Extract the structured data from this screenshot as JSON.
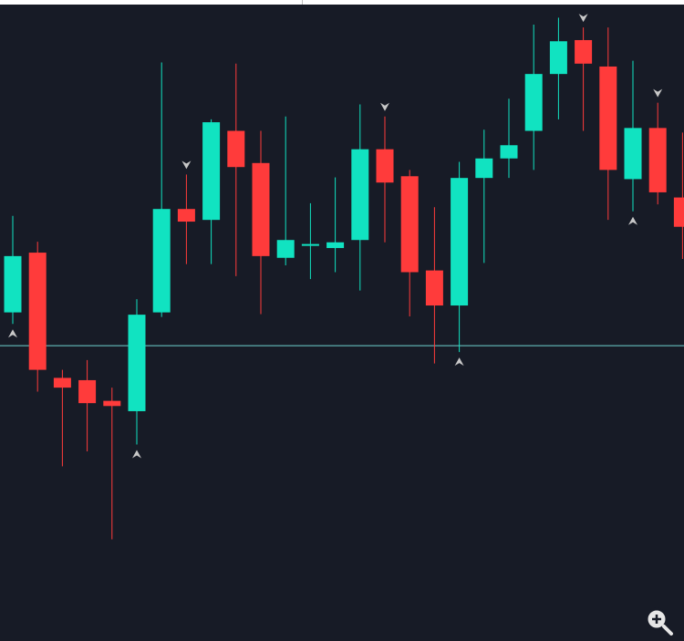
{
  "colors": {
    "background": "#171b26",
    "bullish": "#11e3c1",
    "bearish": "#ff3b3b",
    "level_line": "#6fd3cf",
    "fractal_marker": "#c8c8c8",
    "zoom_icon_bg": "#e6e6e6",
    "zoom_icon_fg": "#171b26"
  },
  "chart_data": {
    "type": "candlestick",
    "title": "",
    "xlabel": "",
    "ylabel": "",
    "grid": false,
    "ylim": [
      0,
      100
    ],
    "candles": [
      {
        "o": 48.0,
        "h": 64.8,
        "l": 46.0,
        "c": 57.8
      },
      {
        "o": 58.4,
        "h": 60.3,
        "l": 34.2,
        "c": 38.0
      },
      {
        "o": 36.6,
        "h": 38.0,
        "l": 21.2,
        "c": 34.9
      },
      {
        "o": 36.2,
        "h": 39.7,
        "l": 23.8,
        "c": 32.2
      },
      {
        "o": 32.6,
        "h": 34.9,
        "l": 8.5,
        "c": 31.7
      },
      {
        "o": 30.8,
        "h": 50.3,
        "l": 25.0,
        "c": 47.6
      },
      {
        "o": 48.0,
        "h": 91.5,
        "l": 47.2,
        "c": 66.0
      },
      {
        "o": 66.0,
        "h": 72.0,
        "l": 56.4,
        "c": 63.8
      },
      {
        "o": 64.1,
        "h": 81.6,
        "l": 56.4,
        "c": 81.1
      },
      {
        "o": 79.6,
        "h": 91.3,
        "l": 54.3,
        "c": 73.3
      },
      {
        "o": 74.0,
        "h": 79.6,
        "l": 47.7,
        "c": 57.8
      },
      {
        "o": 57.5,
        "h": 82.1,
        "l": 56.2,
        "c": 60.6
      },
      {
        "o": 59.6,
        "h": 67.0,
        "l": 53.8,
        "c": 59.9
      },
      {
        "o": 59.2,
        "h": 71.5,
        "l": 55.0,
        "c": 60.2
      },
      {
        "o": 60.6,
        "h": 84.2,
        "l": 51.8,
        "c": 76.4
      },
      {
        "o": 76.4,
        "h": 82.1,
        "l": 60.2,
        "c": 70.6
      },
      {
        "o": 71.7,
        "h": 72.8,
        "l": 47.3,
        "c": 55.0
      },
      {
        "o": 55.3,
        "h": 66.3,
        "l": 39.1,
        "c": 49.2
      },
      {
        "o": 49.2,
        "h": 74.2,
        "l": 41.1,
        "c": 71.4
      },
      {
        "o": 71.4,
        "h": 79.8,
        "l": 56.6,
        "c": 74.8
      },
      {
        "o": 74.8,
        "h": 85.2,
        "l": 71.4,
        "c": 77.1
      },
      {
        "o": 79.6,
        "h": 98.1,
        "l": 72.8,
        "c": 89.5
      },
      {
        "o": 89.5,
        "h": 99.3,
        "l": 81.6,
        "c": 95.2
      },
      {
        "o": 95.4,
        "h": 97.6,
        "l": 79.6,
        "c": 91.3
      },
      {
        "o": 90.8,
        "h": 97.6,
        "l": 64.1,
        "c": 72.8
      },
      {
        "o": 71.2,
        "h": 91.8,
        "l": 65.6,
        "c": 80.1
      },
      {
        "o": 80.1,
        "h": 84.5,
        "l": 66.8,
        "c": 68.9
      },
      {
        "o": 68.0,
        "h": 79.3,
        "l": 57.3,
        "c": 62.9
      }
    ],
    "horizontal_line": 42.2,
    "fractals": [
      {
        "index": 0,
        "dir": "down"
      },
      {
        "index": 5,
        "dir": "down"
      },
      {
        "index": 7,
        "dir": "up"
      },
      {
        "index": 15,
        "dir": "up"
      },
      {
        "index": 18,
        "dir": "down"
      },
      {
        "index": 23,
        "dir": "up"
      },
      {
        "index": 25,
        "dir": "down"
      },
      {
        "index": 26,
        "dir": "up"
      }
    ]
  },
  "controls": {
    "zoom_icon": "zoom-in-icon"
  }
}
